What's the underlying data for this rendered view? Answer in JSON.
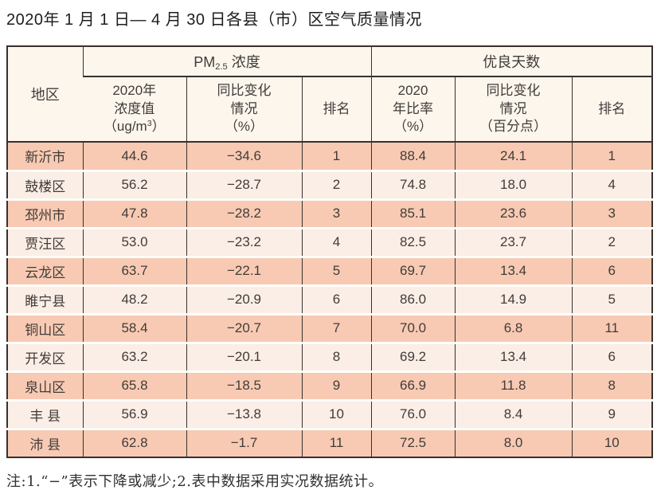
{
  "title": "2020年 1 月 1 日— 4 月 30 日各县（市）区空气质量情况",
  "table": {
    "header": {
      "region": "地区",
      "pm25_group": {
        "prefix": "PM",
        "sub": "2.5",
        "suffix": " 浓度"
      },
      "good_days_group": "优良天数",
      "sub": {
        "pm25_value_lines": [
          "2020年",
          "浓度值"
        ],
        "pm25_value_unit": {
          "prefix": "（ug/m",
          "sup": "3",
          "suffix": "）"
        },
        "pm25_change_lines": [
          "同比变化",
          "情况",
          "（%）"
        ],
        "pm25_rank": "排名",
        "good_ratio_lines": [
          "2020",
          "年比率",
          "（%）"
        ],
        "good_change_lines": [
          "同比变化",
          "情况",
          "（百分点）"
        ],
        "good_rank": "排名"
      }
    },
    "rows": [
      {
        "region": "新沂市",
        "pm25_value": "44.6",
        "pm25_change": "−34.6",
        "pm25_rank": "1",
        "good_ratio": "88.4",
        "good_change": "24.1",
        "good_rank": "1"
      },
      {
        "region": "鼓楼区",
        "pm25_value": "56.2",
        "pm25_change": "−28.7",
        "pm25_rank": "2",
        "good_ratio": "74.8",
        "good_change": "18.0",
        "good_rank": "4"
      },
      {
        "region": "邳州市",
        "pm25_value": "47.8",
        "pm25_change": "−28.2",
        "pm25_rank": "3",
        "good_ratio": "85.1",
        "good_change": "23.6",
        "good_rank": "3"
      },
      {
        "region": "贾汪区",
        "pm25_value": "53.0",
        "pm25_change": "−23.2",
        "pm25_rank": "4",
        "good_ratio": "82.5",
        "good_change": "23.7",
        "good_rank": "2"
      },
      {
        "region": "云龙区",
        "pm25_value": "63.7",
        "pm25_change": "−22.1",
        "pm25_rank": "5",
        "good_ratio": "69.7",
        "good_change": "13.4",
        "good_rank": "6"
      },
      {
        "region": "睢宁县",
        "pm25_value": "48.2",
        "pm25_change": "−20.9",
        "pm25_rank": "6",
        "good_ratio": "86.0",
        "good_change": "14.9",
        "good_rank": "5"
      },
      {
        "region": "铜山区",
        "pm25_value": "58.4",
        "pm25_change": "−20.7",
        "pm25_rank": "7",
        "good_ratio": "70.0",
        "good_change": "6.8",
        "good_rank": "11"
      },
      {
        "region": "开发区",
        "pm25_value": "63.2",
        "pm25_change": "−20.1",
        "pm25_rank": "8",
        "good_ratio": "69.2",
        "good_change": "13.4",
        "good_rank": "6"
      },
      {
        "region": "泉山区",
        "pm25_value": "65.8",
        "pm25_change": "−18.5",
        "pm25_rank": "9",
        "good_ratio": "66.9",
        "good_change": "11.8",
        "good_rank": "8"
      },
      {
        "region": "丰 县",
        "pm25_value": "56.9",
        "pm25_change": "−13.8",
        "pm25_rank": "10",
        "good_ratio": "76.0",
        "good_change": "8.4",
        "good_rank": "9"
      },
      {
        "region": "沛 县",
        "pm25_value": "62.8",
        "pm25_change": "−1.7",
        "pm25_rank": "11",
        "good_ratio": "72.5",
        "good_change": "8.0",
        "good_rank": "10"
      }
    ]
  },
  "footnote": "注:1.“−”表示下降或减少;2.表中数据采用实况数据统计。",
  "colors": {
    "row_odd": "#f8cab3",
    "row_even": "#fbeee6",
    "header_bg": "#fcf6ed",
    "grid_line": "#38302c",
    "text": "#413c39"
  }
}
